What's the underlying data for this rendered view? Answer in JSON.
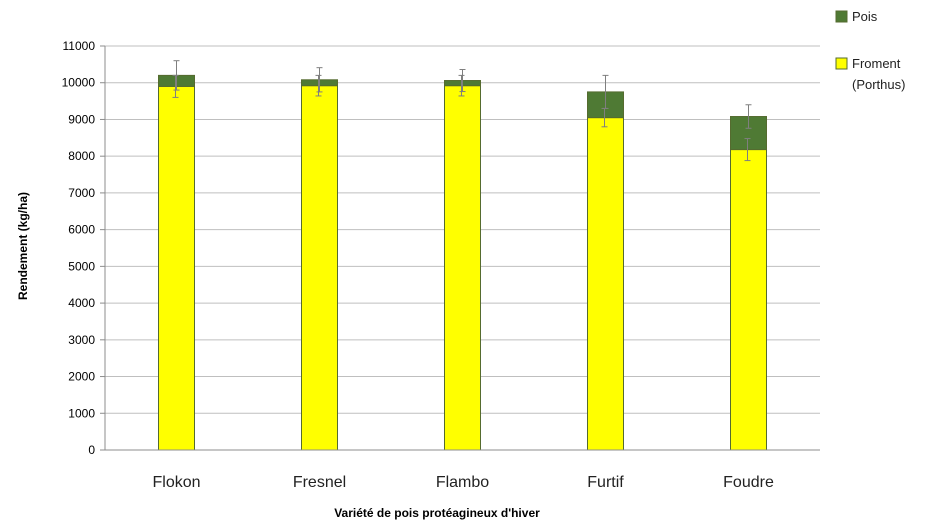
{
  "chart_data": {
    "type": "bar",
    "stacked": true,
    "categories": [
      "Flokon",
      "Fresnel",
      "Flambo",
      "Furtif",
      "Foudre"
    ],
    "series": [
      {
        "name": "Froment (Porthus)",
        "color": "#FFFF00",
        "values": [
          9900,
          9920,
          9920,
          9050,
          8180
        ],
        "error": [
          300,
          280,
          280,
          250,
          300
        ]
      },
      {
        "name": "Pois",
        "color": "#4F7A34",
        "values": [
          300,
          160,
          140,
          700,
          900
        ],
        "error": [
          400,
          330,
          300,
          450,
          320
        ]
      }
    ],
    "xlabel": "Variété de pois protéagineux d'hiver",
    "ylabel": "Rendement (kg/ha)",
    "ylim": [
      0,
      11000
    ],
    "yticks": [
      0,
      1000,
      2000,
      3000,
      4000,
      5000,
      6000,
      7000,
      8000,
      9000,
      10000,
      11000
    ],
    "grid": true,
    "legend_position": "right",
    "legend": [
      {
        "lines": [
          "Pois"
        ],
        "color": "#4F7A34"
      },
      {
        "lines": [
          "Froment",
          "(Porthus)"
        ],
        "color": "#FFFF00"
      }
    ]
  }
}
